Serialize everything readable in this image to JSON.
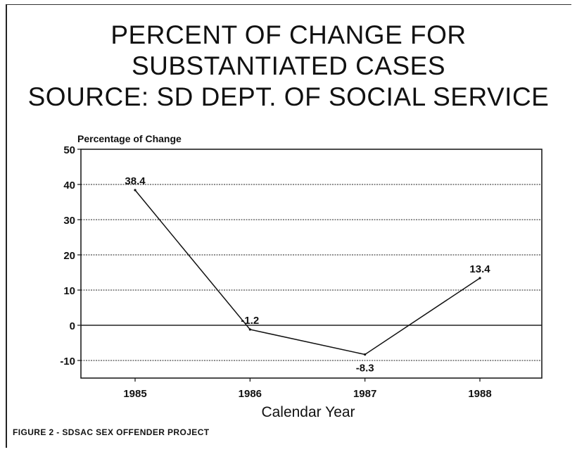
{
  "title_lines": [
    "PERCENT OF CHANGE FOR",
    "SUBSTANTIATED CASES",
    "SOURCE: SD DEPT. OF SOCIAL SERVICE"
  ],
  "figure_caption": "FIGURE 2 - SDSAC SEX OFFENDER PROJECT",
  "chart_data": {
    "type": "line",
    "title": "PERCENT OF CHANGE FOR SUBSTANTIATED CASES SOURCE: SD DEPT. OF SOCIAL SERVICE",
    "xlabel": "Calendar Year",
    "ylabel": "Percentage of Change",
    "categories": [
      "1985",
      "1986",
      "1987",
      "1988"
    ],
    "series": [
      {
        "values": [
          38.4,
          -1.2,
          -8.3,
          13.4
        ]
      }
    ],
    "data_labels": [
      "38.4",
      "-1.2",
      "-8.3",
      "13.4"
    ],
    "ylim": [
      -15,
      50
    ],
    "yticks": [
      50,
      40,
      30,
      20,
      10,
      0,
      -10
    ],
    "ytick_labels": [
      "50",
      "40",
      "30",
      "20",
      "10",
      "0",
      "-10"
    ],
    "grid": true,
    "line_color": "#111111"
  }
}
